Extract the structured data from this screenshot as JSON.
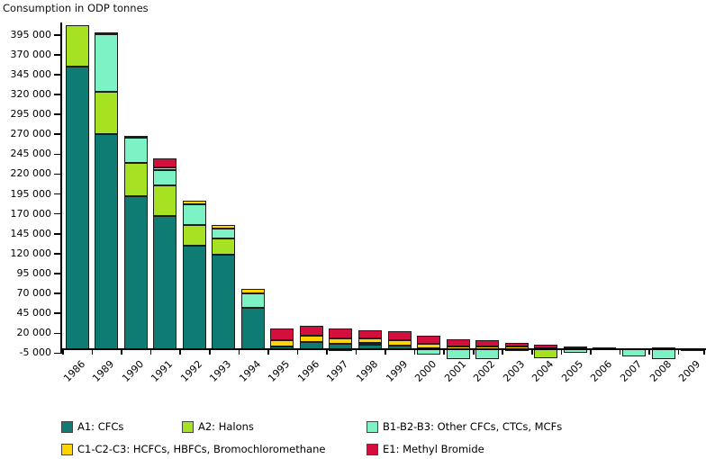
{
  "title": "Consumption in ODP tonnes",
  "chart_data": {
    "type": "bar",
    "stacked": true,
    "title": "Consumption in ODP tonnes",
    "xlabel": "",
    "ylabel": "Consumption in ODP tonnes",
    "grid": false,
    "legend_position": "bottom",
    "ylim": [
      -17000,
      410000
    ],
    "yticks": [
      -5000,
      20000,
      45000,
      70000,
      95000,
      120000,
      145000,
      170000,
      195000,
      220000,
      245000,
      270000,
      295000,
      320000,
      345000,
      370000,
      395000
    ],
    "categories": [
      "1986",
      "1989",
      "1990",
      "1991",
      "1992",
      "1993",
      "1994",
      "1995",
      "1996",
      "1997",
      "1998",
      "1999",
      "2000",
      "2001",
      "2002",
      "2003",
      "2004",
      "2005",
      "2006",
      "2007",
      "2008",
      "2009"
    ],
    "series": [
      {
        "name": "A1: CFCs",
        "color": "#0e7c72",
        "values": [
          355000,
          270000,
          192000,
          167000,
          130000,
          119000,
          52000,
          3500,
          9000,
          6500,
          5500,
          4500,
          1000,
          0,
          0,
          0,
          0,
          0,
          1000,
          500,
          0,
          0
        ]
      },
      {
        "name": "A2: Halons",
        "color": "#a6e122",
        "values": [
          52000,
          53500,
          42000,
          38500,
          26000,
          20000,
          0,
          0,
          0,
          0,
          0,
          0,
          0,
          0,
          0,
          -2000,
          -11000,
          0,
          0,
          0,
          0,
          0
        ]
      },
      {
        "name": "B1-B2-B3: Other CFCs, CTCs, MCFs",
        "color": "#7df2c5",
        "values": [
          0,
          72500,
          31500,
          20000,
          26000,
          12000,
          18000,
          0,
          0,
          -2000,
          2000,
          0,
          -6500,
          -13000,
          -12000,
          0,
          0,
          -4000,
          1000,
          -9000,
          -13000,
          -1000
        ]
      },
      {
        "name": "C1-C2-C3: HCFCs, HBFCs, Bromochloromethane",
        "color": "#ffd400",
        "values": [
          0,
          2500,
          2500,
          2500,
          4500,
          5000,
          5500,
          7500,
          7500,
          7500,
          6500,
          6500,
          6000,
          3500,
          3500,
          3700,
          1500,
          1000,
          0,
          0,
          2000,
          500
        ]
      },
      {
        "name": "E1: Methyl Bromide",
        "color": "#d30f3e",
        "values": [
          0,
          0,
          0,
          11500,
          0,
          0,
          0,
          15000,
          12500,
          12000,
          10000,
          11500,
          10000,
          8500,
          7500,
          4500,
          4500,
          2500,
          0,
          500,
          0,
          0
        ]
      }
    ]
  }
}
